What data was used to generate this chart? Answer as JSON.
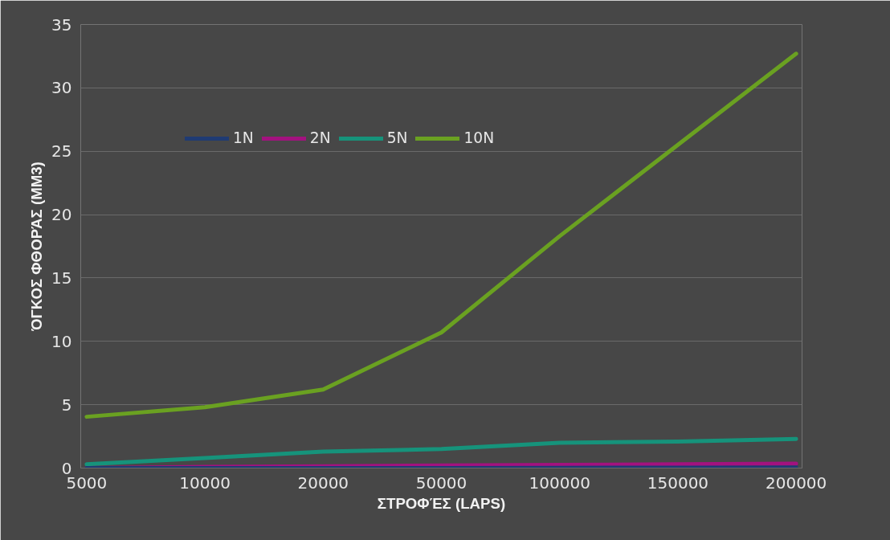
{
  "chart_data": {
    "type": "line",
    "xlabel": "ΣΤΡΟΦΈΣ (LAPS)",
    "ylabel": "ΌΓΚΟΣ ΦΘΟΡΆΣ (MM3)",
    "categories": [
      "5000",
      "10000",
      "20000",
      "50000",
      "100000",
      "150000",
      "200000"
    ],
    "series": [
      {
        "name": "1N",
        "color": "#1f3b73",
        "values": [
          0,
          0,
          0,
          0,
          0.02,
          0.03,
          0.05
        ]
      },
      {
        "name": "2N",
        "color": "#a3127f",
        "values": [
          0,
          0.1,
          0.15,
          0.2,
          0.25,
          0.3,
          0.35
        ]
      },
      {
        "name": "5N",
        "color": "#16937b",
        "values": [
          0.3,
          0.8,
          1.3,
          1.5,
          2.0,
          2.1,
          2.3
        ]
      },
      {
        "name": "10N",
        "color": "#6aa121",
        "values": [
          4.05,
          4.8,
          6.2,
          10.7,
          18.3,
          25.5,
          32.7
        ]
      }
    ],
    "ylim": [
      0,
      35
    ],
    "yticks": [
      0,
      5,
      10,
      15,
      20,
      25,
      30,
      35
    ],
    "grid": "y",
    "legend": "top",
    "marker": "none",
    "line_style": "solid"
  }
}
